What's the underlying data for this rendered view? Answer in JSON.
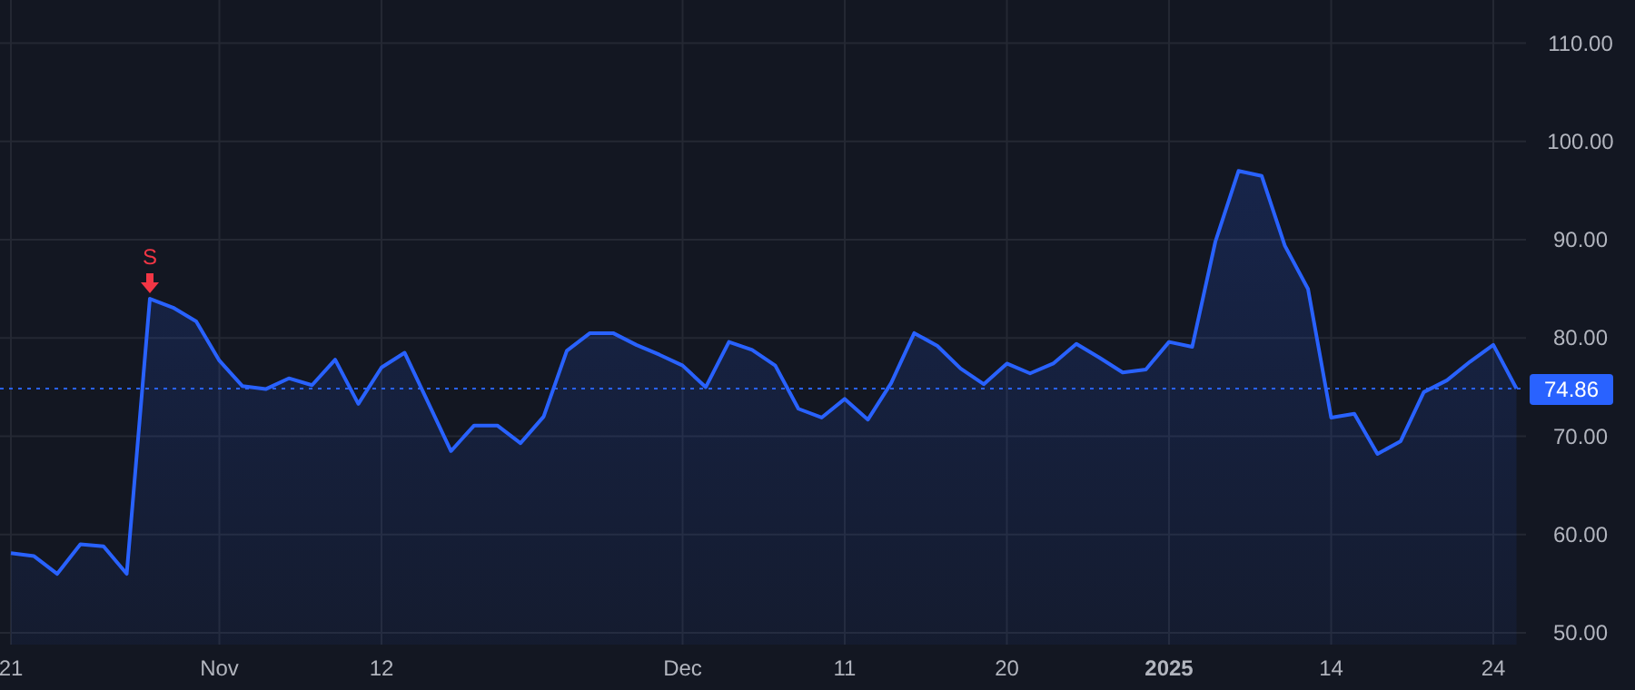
{
  "chart_data": {
    "type": "area",
    "categories": [
      "21",
      null,
      null,
      null,
      null,
      null,
      null,
      null,
      null,
      "Nov",
      null,
      null,
      null,
      null,
      null,
      null,
      "12",
      null,
      null,
      null,
      null,
      null,
      null,
      null,
      null,
      null,
      null,
      null,
      null,
      "Dec",
      null,
      null,
      null,
      null,
      null,
      null,
      "11",
      null,
      null,
      null,
      null,
      null,
      null,
      "20",
      null,
      null,
      null,
      null,
      null,
      null,
      "2025",
      null,
      null,
      null,
      null,
      null,
      null,
      "14",
      null,
      null,
      null,
      null,
      null,
      null,
      "24",
      null
    ],
    "series": [
      {
        "color": "#2962ff",
        "values": [
          58.1,
          57.8,
          56.0,
          59.0,
          58.8,
          56.0,
          84.0,
          83.1,
          81.7,
          77.7,
          75.1,
          74.8,
          75.9,
          75.2,
          77.8,
          73.3,
          77.0,
          78.5,
          73.5,
          68.5,
          71.1,
          71.1,
          69.3,
          72.0,
          78.7,
          80.5,
          80.5,
          79.3,
          78.3,
          77.2,
          75.0,
          79.6,
          78.8,
          77.2,
          72.8,
          71.9,
          73.8,
          71.7,
          75.4,
          80.5,
          79.2,
          76.9,
          75.3,
          77.4,
          76.4,
          77.4,
          79.4,
          78.0,
          76.5,
          76.8,
          79.6,
          79.1,
          89.8,
          97.0,
          96.5,
          89.4,
          85.0,
          71.9,
          72.3,
          68.2,
          69.5,
          74.5,
          75.7,
          77.6,
          79.3,
          74.86
        ]
      }
    ],
    "ylim": [
      48.8,
      114.4
    ],
    "yticks": [
      {
        "value": 50,
        "label": "50.00"
      },
      {
        "value": 60,
        "label": "60.00"
      },
      {
        "value": 70,
        "label": "70.00"
      },
      {
        "value": 80,
        "label": "80.00"
      },
      {
        "value": 90,
        "label": "90.00"
      },
      {
        "value": 100,
        "label": "100.00"
      },
      {
        "value": 110,
        "label": "110.00"
      }
    ],
    "grid": true,
    "line_style": "solid",
    "ref_lines": [
      {
        "axis": "y",
        "value": 74.86,
        "label": "74.86",
        "color": "#2962ff",
        "line_style": "dotted"
      }
    ],
    "annotations": [
      {
        "text": "S",
        "y": 84.0
      }
    ]
  }
}
